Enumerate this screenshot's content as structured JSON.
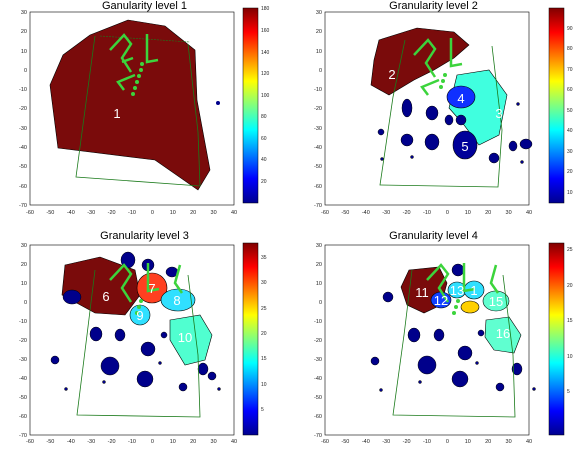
{
  "chart_data": [
    {
      "type": "map",
      "title": "Ganularity level 1",
      "xlim": [
        -60,
        40
      ],
      "ylim": [
        -70,
        30
      ],
      "xticks": [
        -60,
        -50,
        -40,
        -30,
        -20,
        -10,
        0,
        10,
        20,
        30,
        40
      ],
      "yticks": [
        30,
        20,
        10,
        0,
        -10,
        -20,
        -30,
        -40,
        -50,
        -60,
        -70
      ],
      "colorbar": {
        "min": 0,
        "max": 180,
        "ticks": [
          180,
          160,
          140,
          120,
          100,
          80,
          60,
          40,
          20
        ]
      },
      "region_labels": [
        {
          "label": "1",
          "x": -20,
          "y": -20
        }
      ]
    },
    {
      "type": "map",
      "title": "Granularity level 2",
      "xlim": [
        -60,
        40
      ],
      "ylim": [
        -70,
        30
      ],
      "xticks": [
        -60,
        -50,
        -40,
        -30,
        -20,
        -10,
        0,
        10,
        20,
        30,
        40
      ],
      "yticks": [
        30,
        20,
        10,
        0,
        -10,
        -20,
        -30,
        -40,
        -50,
        -60,
        -70
      ],
      "colorbar": {
        "min": 0,
        "max": 95,
        "ticks": [
          90,
          80,
          70,
          60,
          50,
          40,
          30,
          20,
          10
        ]
      },
      "region_labels": [
        {
          "label": "2",
          "x": -17,
          "y": 3
        },
        {
          "label": "4",
          "x": 0,
          "y": -8
        },
        {
          "label": "3",
          "x": 25,
          "y": -14
        },
        {
          "label": "5",
          "x": 3,
          "y": -28
        }
      ]
    },
    {
      "type": "map",
      "title": "Granularity level 3",
      "xlim": [
        -60,
        40
      ],
      "ylim": [
        -70,
        30
      ],
      "xticks": [
        -60,
        -50,
        -40,
        -30,
        -20,
        -10,
        0,
        10,
        20,
        30,
        40
      ],
      "yticks": [
        30,
        20,
        10,
        0,
        -10,
        -20,
        -30,
        -40,
        -50,
        -60,
        -70
      ],
      "colorbar": {
        "min": 0,
        "max": 38,
        "ticks": [
          35,
          30,
          25,
          20,
          15,
          10,
          5
        ]
      },
      "region_labels": [
        {
          "label": "6",
          "x": -28,
          "y": -6
        },
        {
          "label": "7",
          "x": 4,
          "y": 0
        },
        {
          "label": "8",
          "x": 18,
          "y": -8
        },
        {
          "label": "9",
          "x": -4,
          "y": -19
        },
        {
          "label": "10",
          "x": 25,
          "y": -30
        }
      ]
    },
    {
      "type": "map",
      "title": "Granularity level 4",
      "xlim": [
        -60,
        40
      ],
      "ylim": [
        -70,
        30
      ],
      "xticks": [
        -60,
        -50,
        -40,
        -30,
        -20,
        -10,
        0,
        10,
        20,
        30,
        40
      ],
      "yticks": [
        30,
        20,
        10,
        0,
        -10,
        -20,
        -30,
        -40,
        -50,
        -60,
        -70
      ],
      "colorbar": {
        "min": 0,
        "max": 27,
        "ticks": [
          25,
          20,
          15,
          10,
          5
        ]
      },
      "region_labels": [
        {
          "label": "11",
          "x": -25,
          "y": -4
        },
        {
          "label": "12",
          "x": -14,
          "y": -9
        },
        {
          "label": "13",
          "x": -2,
          "y": -3
        },
        {
          "label": "1",
          "x": 6,
          "y": -3
        },
        {
          "label": "15",
          "x": 20,
          "y": -9
        },
        {
          "label": "16",
          "x": 25,
          "y": -28
        }
      ]
    }
  ]
}
